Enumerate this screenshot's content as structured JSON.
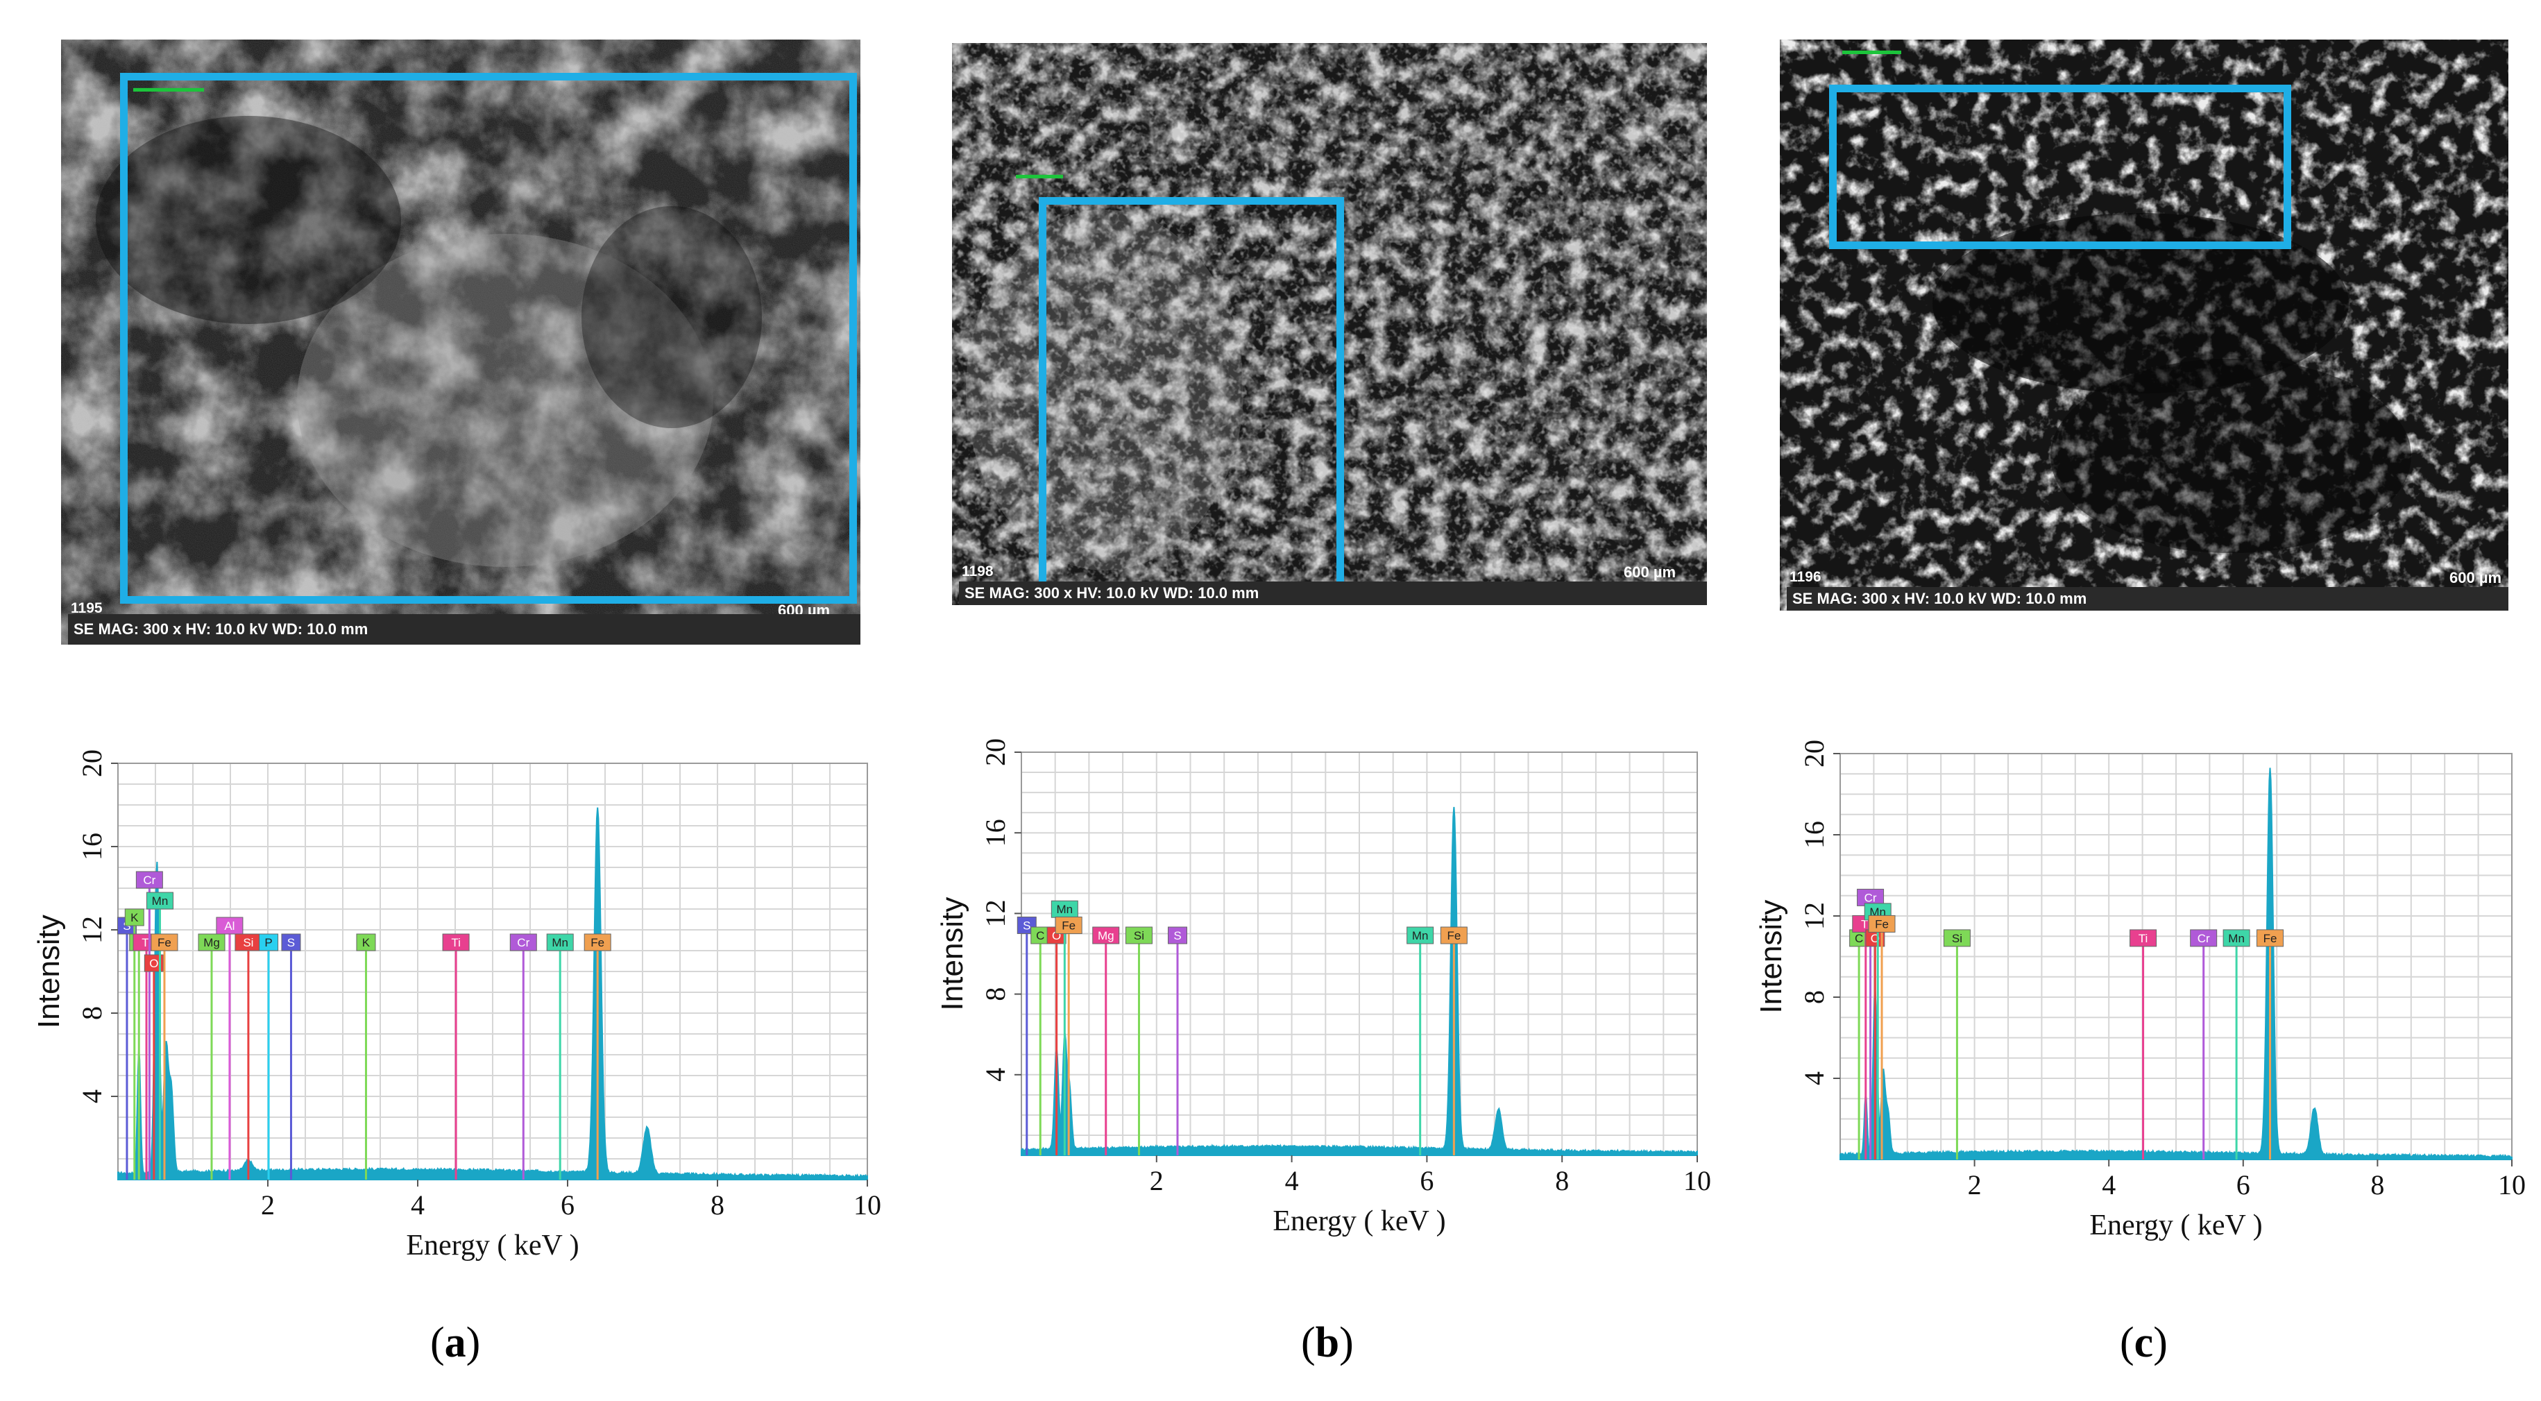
{
  "panels": [
    {
      "caption": "a",
      "sem": {
        "image_id": "1195",
        "info": "SE  MAG: 300 x  HV: 10.0 kV  WD: 10.0 mm",
        "scale_label": "600 µm"
      },
      "chart_data": {
        "type": "line",
        "xlabel": "Energy ( keV )",
        "ylabel": "Intensity",
        "xlim": [
          0,
          10
        ],
        "ylim": [
          0,
          20
        ],
        "x_ticks": [
          "2",
          "4",
          "6",
          "8",
          "10"
        ],
        "y_ticks": [
          "4",
          "8",
          "12",
          "16",
          "20"
        ],
        "grid": true,
        "spectrum_peaks": [
          {
            "x": 0.28,
            "y": 6.0,
            "w": 0.02
          },
          {
            "x": 0.52,
            "y": 15.0,
            "w": 0.03
          },
          {
            "x": 0.64,
            "y": 6.0,
            "w": 0.03
          },
          {
            "x": 0.71,
            "y": 4.0,
            "w": 0.03
          },
          {
            "x": 1.74,
            "y": 0.5,
            "w": 0.05
          },
          {
            "x": 6.4,
            "y": 17.5,
            "w": 0.045
          },
          {
            "x": 7.06,
            "y": 2.2,
            "w": 0.05
          }
        ],
        "baseline": 0.35,
        "element_lines": [
          {
            "label": "S",
            "x": 0.12,
            "h": 11.8,
            "color": "#5b5bd6"
          },
          {
            "label": "K",
            "x": 0.22,
            "h": 12.2,
            "color": "#7ed957"
          },
          {
            "label": "C",
            "x": 0.28,
            "h": 11.0,
            "color": "#7ed957"
          },
          {
            "label": "Ti",
            "x": 0.38,
            "h": 11.0,
            "color": "#e8408f"
          },
          {
            "label": "Cr",
            "x": 0.42,
            "h": 14.0,
            "color": "#b05ad8"
          },
          {
            "label": "O",
            "x": 0.48,
            "h": 10.0,
            "color": "#e84040"
          },
          {
            "label": "Mn",
            "x": 0.56,
            "h": 13.0,
            "color": "#3ed6a8"
          },
          {
            "label": "Fe",
            "x": 0.62,
            "h": 11.0,
            "color": "#f0a050"
          },
          {
            "label": "Mg",
            "x": 1.25,
            "h": 11.0,
            "color": "#7ed957"
          },
          {
            "label": "Al",
            "x": 1.49,
            "h": 11.8,
            "color": "#d95bd6"
          },
          {
            "label": "Si",
            "x": 1.74,
            "h": 11.0,
            "color": "#e84040"
          },
          {
            "label": "P",
            "x": 2.01,
            "h": 11.0,
            "color": "#29d0f0"
          },
          {
            "label": "S",
            "x": 2.31,
            "h": 11.0,
            "color": "#5b5bd6"
          },
          {
            "label": "K",
            "x": 3.31,
            "h": 11.0,
            "color": "#7ed957"
          },
          {
            "label": "Ti",
            "x": 4.51,
            "h": 11.0,
            "color": "#e8408f"
          },
          {
            "label": "Cr",
            "x": 5.41,
            "h": 11.0,
            "color": "#b05ad8"
          },
          {
            "label": "Mn",
            "x": 5.9,
            "h": 11.0,
            "color": "#3ed6a8"
          },
          {
            "label": "Fe",
            "x": 6.4,
            "h": 11.0,
            "color": "#f0a050"
          }
        ]
      }
    },
    {
      "caption": "b",
      "sem": {
        "image_id": "1198",
        "info": "SE  MAG: 300 x  HV: 10.0 kV  WD: 10.0 mm",
        "scale_label": "600 µm"
      },
      "chart_data": {
        "type": "line",
        "xlabel": "Energy ( keV )",
        "ylabel": "Intensity",
        "xlim": [
          0,
          10
        ],
        "ylim": [
          0,
          20
        ],
        "x_ticks": [
          "2",
          "4",
          "6",
          "8",
          "10"
        ],
        "y_ticks": [
          "4",
          "8",
          "12",
          "16",
          "20"
        ],
        "grid": true,
        "spectrum_peaks": [
          {
            "x": 0.52,
            "y": 5.0,
            "w": 0.03
          },
          {
            "x": 0.64,
            "y": 5.5,
            "w": 0.03
          },
          {
            "x": 0.71,
            "y": 3.0,
            "w": 0.03
          },
          {
            "x": 6.4,
            "y": 17.0,
            "w": 0.045
          },
          {
            "x": 7.06,
            "y": 2.0,
            "w": 0.05
          }
        ],
        "baseline": 0.3,
        "element_lines": [
          {
            "label": "S",
            "x": 0.08,
            "h": 11.0,
            "color": "#5b5bd6"
          },
          {
            "label": "C",
            "x": 0.28,
            "h": 10.5,
            "color": "#7ed957"
          },
          {
            "label": "O",
            "x": 0.52,
            "h": 10.5,
            "color": "#e84040"
          },
          {
            "label": "Mn",
            "x": 0.64,
            "h": 11.8,
            "color": "#3ed6a8"
          },
          {
            "label": "Fe",
            "x": 0.7,
            "h": 11.0,
            "color": "#f0a050"
          },
          {
            "label": "Mg",
            "x": 1.25,
            "h": 10.5,
            "color": "#e8408f"
          },
          {
            "label": "Si",
            "x": 1.74,
            "h": 10.5,
            "color": "#7ed957"
          },
          {
            "label": "S",
            "x": 2.31,
            "h": 10.5,
            "color": "#b05ad8"
          },
          {
            "label": "Mn",
            "x": 5.9,
            "h": 10.5,
            "color": "#3ed6a8"
          },
          {
            "label": "Fe",
            "x": 6.4,
            "h": 10.5,
            "color": "#f0a050"
          }
        ]
      }
    },
    {
      "caption": "c",
      "sem": {
        "image_id": "1196",
        "info": "SE  MAG: 300 x  HV: 10.0 kV  WD: 10.0 mm",
        "scale_label": "600 µm"
      },
      "chart_data": {
        "type": "line",
        "xlabel": "Energy ( keV )",
        "ylabel": "Intensity",
        "xlim": [
          0,
          10
        ],
        "ylim": [
          0,
          20
        ],
        "x_ticks": [
          "2",
          "4",
          "6",
          "8",
          "10"
        ],
        "y_ticks": [
          "4",
          "8",
          "12",
          "16",
          "20"
        ],
        "grid": true,
        "spectrum_peaks": [
          {
            "x": 0.38,
            "y": 3.0,
            "w": 0.02
          },
          {
            "x": 0.52,
            "y": 8.0,
            "w": 0.03
          },
          {
            "x": 0.64,
            "y": 4.0,
            "w": 0.03
          },
          {
            "x": 0.71,
            "y": 2.0,
            "w": 0.03
          },
          {
            "x": 6.4,
            "y": 19.0,
            "w": 0.045
          },
          {
            "x": 7.06,
            "y": 2.3,
            "w": 0.05
          }
        ],
        "baseline": 0.25,
        "element_lines": [
          {
            "label": "C",
            "x": 0.28,
            "h": 10.5,
            "color": "#7ed957"
          },
          {
            "label": "Ti",
            "x": 0.38,
            "h": 11.2,
            "color": "#e8408f"
          },
          {
            "label": "Cr",
            "x": 0.45,
            "h": 12.5,
            "color": "#b05ad8"
          },
          {
            "label": "O",
            "x": 0.52,
            "h": 10.5,
            "color": "#e84040"
          },
          {
            "label": "Mn",
            "x": 0.56,
            "h": 11.8,
            "color": "#3ed6a8"
          },
          {
            "label": "Fe",
            "x": 0.62,
            "h": 11.2,
            "color": "#f0a050"
          },
          {
            "label": "Si",
            "x": 1.74,
            "h": 10.5,
            "color": "#7ed957"
          },
          {
            "label": "Ti",
            "x": 4.51,
            "h": 10.5,
            "color": "#e8408f"
          },
          {
            "label": "Cr",
            "x": 5.41,
            "h": 10.5,
            "color": "#b05ad8"
          },
          {
            "label": "Mn",
            "x": 5.9,
            "h": 10.5,
            "color": "#3ed6a8"
          },
          {
            "label": "Fe",
            "x": 6.4,
            "h": 10.5,
            "color": "#f0a050"
          }
        ]
      }
    }
  ],
  "colors": {
    "roi_box": "#1faee6",
    "spectrum_fill": "#1aa6c6",
    "grid": "#d6d6d6"
  }
}
